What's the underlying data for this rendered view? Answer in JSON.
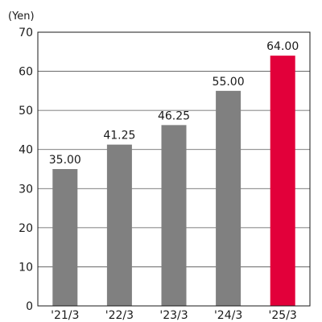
{
  "chart_data": {
    "type": "bar",
    "title": "",
    "xlabel": "",
    "ylabel": "(Yen)",
    "categories": [
      "'21/3",
      "'22/3",
      "'23/3",
      "'24/3",
      "'25/3"
    ],
    "values": [
      35.0,
      41.25,
      46.25,
      55.0,
      64.0
    ],
    "value_labels": [
      "35.00",
      "41.25",
      "46.25",
      "55.00",
      "64.00"
    ],
    "ylim": [
      0,
      70
    ],
    "yticks": [
      0,
      10,
      20,
      30,
      40,
      50,
      60,
      70
    ],
    "grid": true,
    "legend": "none",
    "colors": {
      "default_bar": "#808080",
      "highlight_bar": "#e2003a",
      "grid": "#555555",
      "axis": "#1a1a1a",
      "text": "#1a1a1a"
    },
    "highlight_index": 4
  }
}
